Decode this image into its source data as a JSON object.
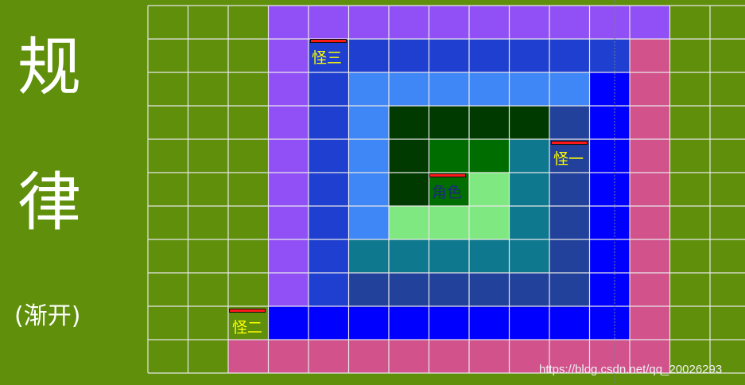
{
  "title": {
    "line1": "规",
    "line2": "律",
    "subtitle": "(渐开)"
  },
  "labels": {
    "role": "角色",
    "monster1": "怪一",
    "monster2": "怪二",
    "monster3": "怪三"
  },
  "watermark": "https://blog.csdn.net/qq_20026293",
  "colors": {
    "background": "#5f8f0b",
    "grid_line": "#e8e8e8",
    "ring_purple": "#9150f6",
    "ring_pink": "#d2528c",
    "ring_blue": "#0000ff",
    "ring_mid_blue": "#1e3fd0",
    "ring_navy": "#22419a",
    "ring_sky": "#3f86f7",
    "ring_teal": "#0d788e",
    "ring_light_green": "#80e880",
    "ring_green": "#006d00",
    "ring_dark_green": "#003a00",
    "hp_bar": "#ff1a1a"
  },
  "grid": {
    "columns": 15,
    "rows": 11
  }
}
